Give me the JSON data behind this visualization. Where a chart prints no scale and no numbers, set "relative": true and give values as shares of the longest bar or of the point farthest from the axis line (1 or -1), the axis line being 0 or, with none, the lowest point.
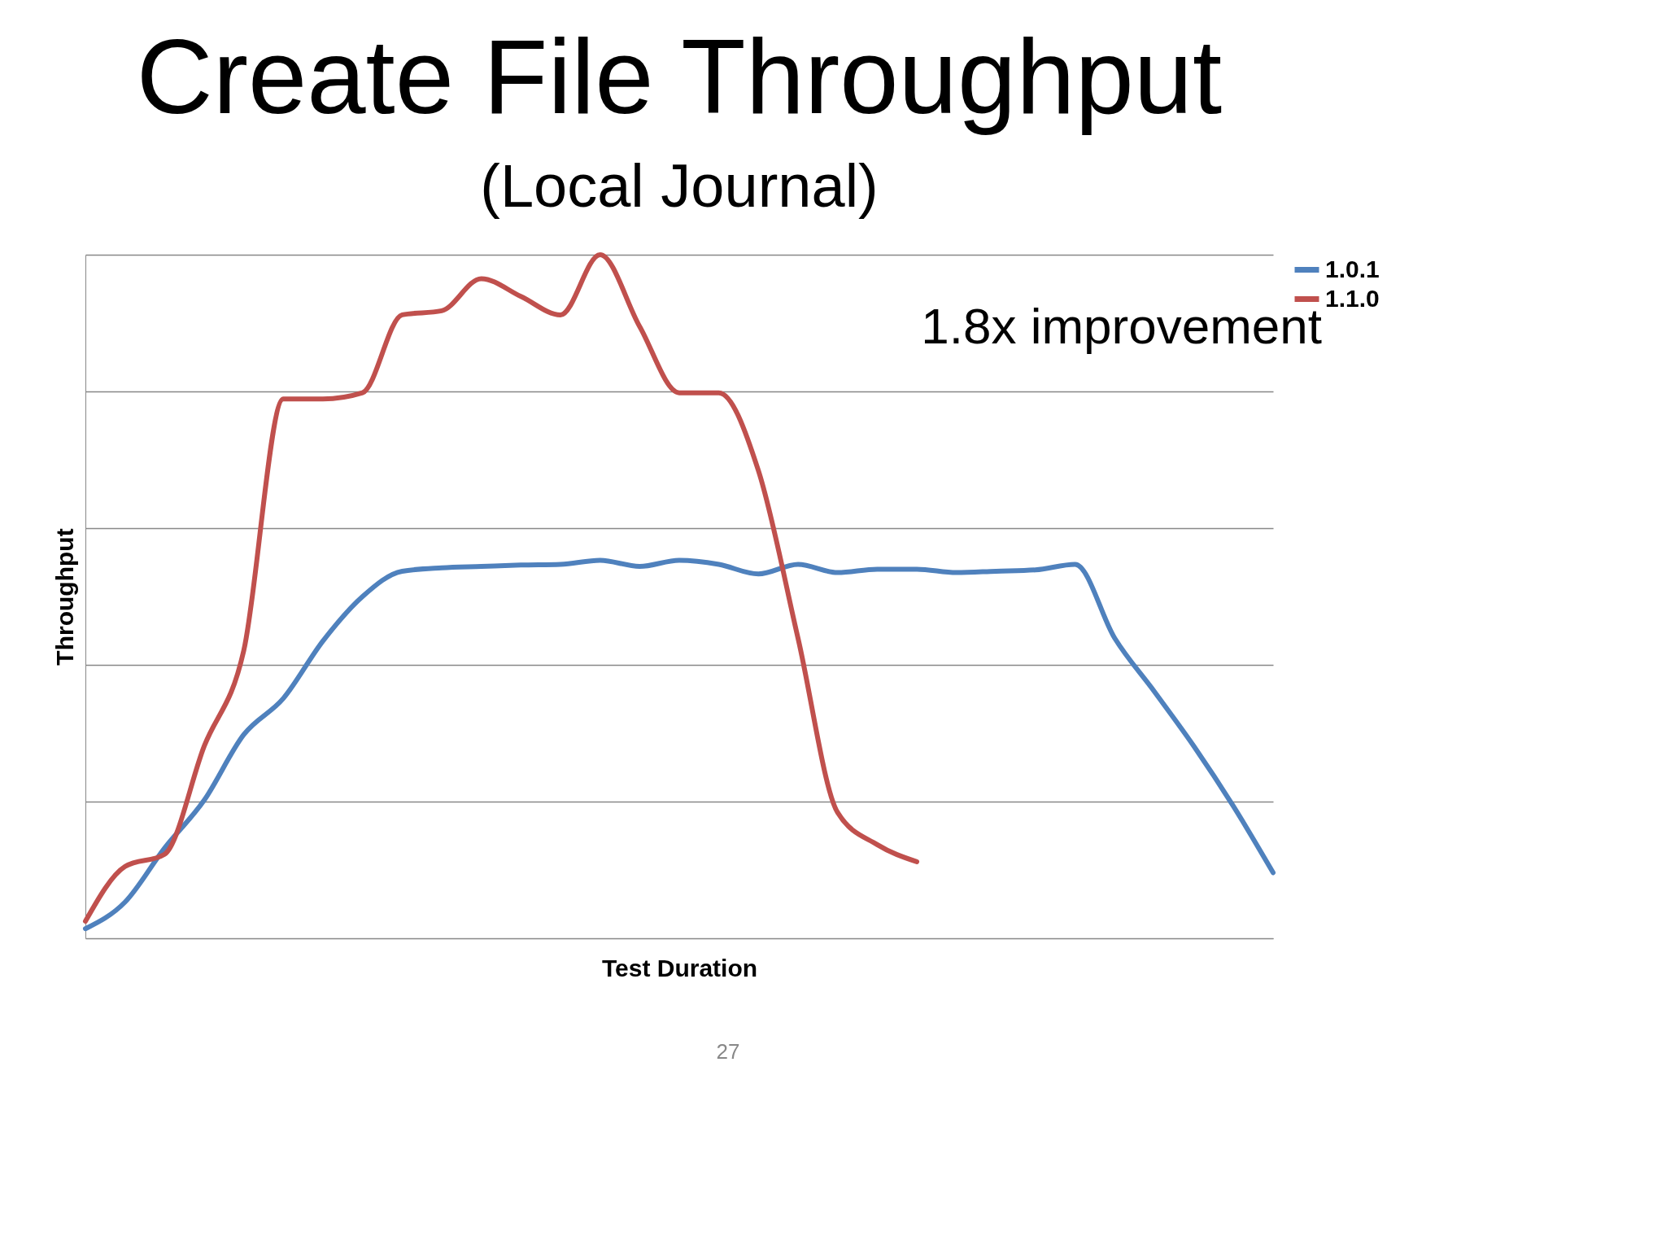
{
  "chart_data": {
    "type": "line",
    "title": "Create File Throughput",
    "subtitle": "(Local Journal)",
    "xlabel": "Test Duration",
    "ylabel": "Throughput",
    "relative": true,
    "grid": "y",
    "legend": "right",
    "marker": "none",
    "line_style": "solid",
    "annotations": [
      "1.8x improvement",
      "27"
    ],
    "categories": [
      null,
      null,
      null,
      null,
      null,
      null,
      null,
      null,
      null,
      null,
      null,
      null,
      null,
      null,
      null,
      null,
      null,
      null,
      null,
      null,
      null,
      null,
      null,
      null,
      null,
      null,
      null,
      null,
      null,
      null,
      null
    ],
    "series": [
      {
        "name": "1.0.1",
        "color": "#4f81bd",
        "values": [
          0.014,
          0.053,
          0.132,
          0.202,
          0.298,
          0.351,
          0.435,
          0.5,
          0.537,
          0.542,
          0.544,
          0.546,
          0.547,
          0.553,
          0.544,
          0.553,
          0.547,
          0.533,
          0.547,
          0.535,
          0.54,
          0.54,
          0.535,
          0.537,
          0.539,
          0.547,
          0.439,
          0.361,
          0.281,
          0.193,
          0.096
        ]
      },
      {
        "name": "1.1.0",
        "color": "#c0504d",
        "values": [
          0.025,
          0.105,
          0.123,
          0.281,
          0.421,
          0.789,
          0.789,
          0.798,
          0.912,
          0.918,
          0.965,
          0.939,
          0.912,
          1,
          0.895,
          0.798,
          0.798,
          0.684,
          0.439,
          0.184,
          0.137,
          0.112,
          null,
          null,
          null,
          null,
          null,
          null,
          null,
          null,
          null
        ]
      }
    ]
  }
}
